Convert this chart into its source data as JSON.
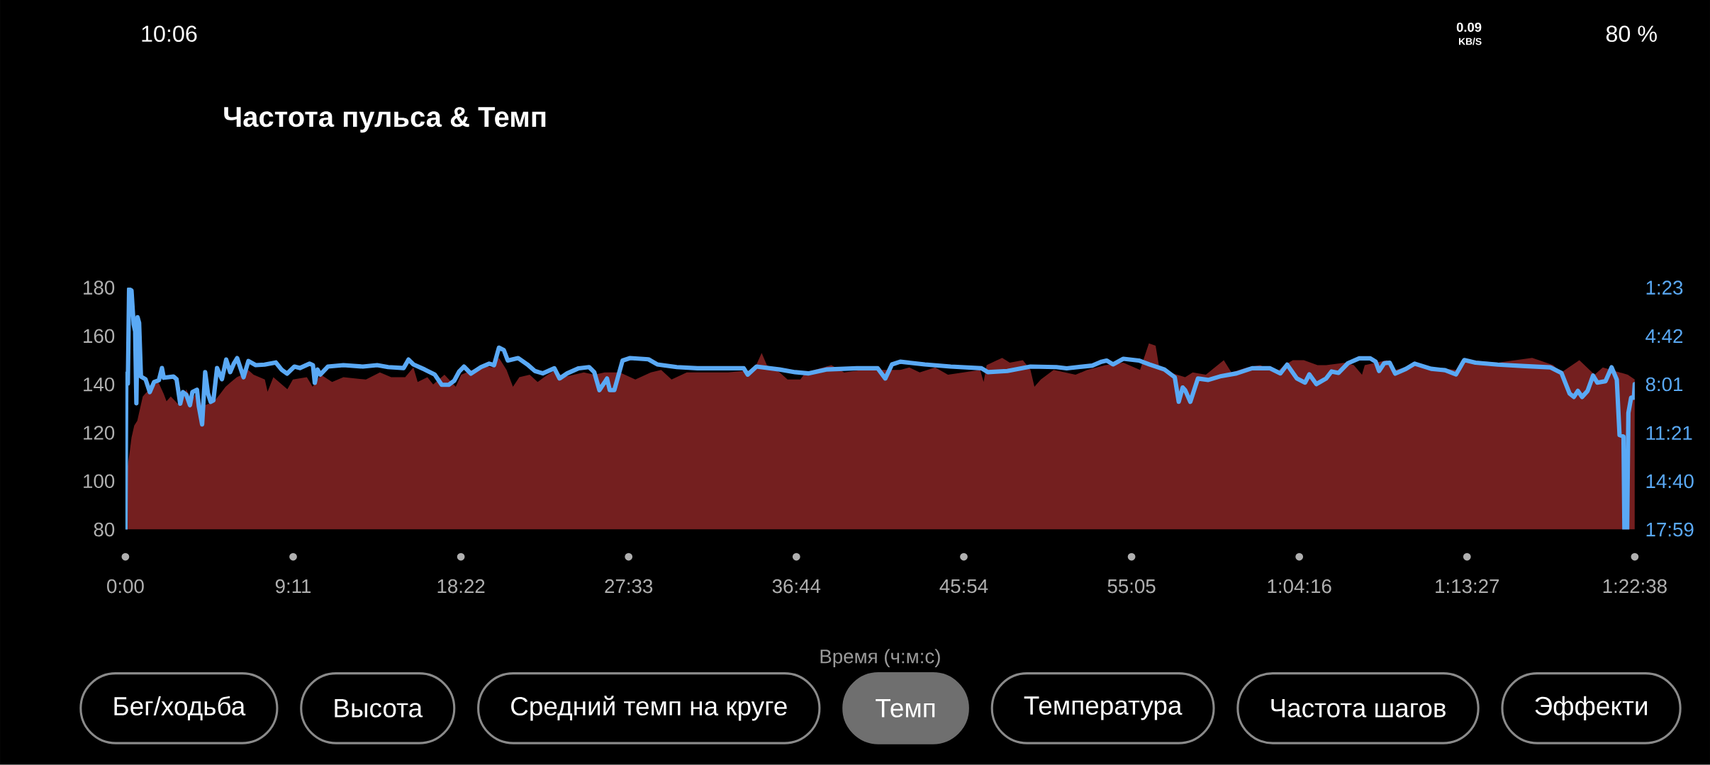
{
  "chart_data": {
    "type": "area",
    "title": "Частота пульса & Темп",
    "xlabel": "Время (ч:м:с)",
    "xlim": [
      0,
      4958
    ],
    "xticks": [
      {
        "value": 0,
        "label": "0:00"
      },
      {
        "value": 551,
        "label": "9:11"
      },
      {
        "value": 1102,
        "label": "18:22"
      },
      {
        "value": 1653,
        "label": "27:33"
      },
      {
        "value": 2204,
        "label": "36:44"
      },
      {
        "value": 2754,
        "label": "45:54"
      },
      {
        "value": 3305,
        "label": "55:05"
      },
      {
        "value": 3856,
        "label": "1:04:16"
      },
      {
        "value": 4407,
        "label": "1:13:27"
      },
      {
        "value": 4958,
        "label": "1:22:38"
      }
    ],
    "ylim": [
      80,
      180
    ],
    "yticks": [
      80,
      100,
      120,
      140,
      160,
      180
    ],
    "y2lim": [
      1079,
      83
    ],
    "y2ticks": [
      {
        "value": 83,
        "label": "1:23"
      },
      {
        "value": 282,
        "label": "4:42"
      },
      {
        "value": 481,
        "label": "8:01"
      },
      {
        "value": 681,
        "label": "11:21"
      },
      {
        "value": 880,
        "label": "14:40"
      },
      {
        "value": 1079,
        "label": "17:59"
      }
    ],
    "series": [
      {
        "color": "#741f1f",
        "x": [
          0,
          14,
          20,
          29,
          39,
          48,
          57,
          71,
          89,
          108,
          126,
          135,
          149,
          172,
          182,
          200,
          218,
          237,
          251,
          274,
          292,
          311,
          329,
          347,
          366,
          384,
          403,
          421,
          458,
          467,
          486,
          532,
          550,
          596,
          615,
          642,
          679,
          716,
          790,
          836,
          873,
          919,
          946,
          960,
          992,
          1011,
          1048,
          1085,
          1103,
          1140,
          1177,
          1204,
          1227,
          1252,
          1273,
          1294,
          1328,
          1354,
          1387,
          1413,
          1438,
          1506,
          1540,
          1574,
          1624,
          1675,
          1726,
          1760,
          1794,
          1844,
          1895,
          1980,
          2065,
          2090,
          2107,
          2149,
          2175,
          2217,
          2234,
          2319,
          2361,
          2420,
          2488,
          2545,
          2575,
          2609,
          2660,
          2702,
          2753,
          2808,
          2819,
          2829,
          2880,
          2905,
          2948,
          2973,
          2986,
          3007,
          3049,
          3121,
          3159,
          3219,
          3278,
          3333,
          3362,
          3384,
          3396,
          3430,
          3481,
          3506,
          3549,
          3608,
          3633,
          3684,
          3727,
          3780,
          3807,
          3835,
          3871,
          3916,
          3944,
          4007,
          4035,
          4062,
          4071,
          4144,
          4171,
          4235,
          4289,
          4371,
          4389,
          4417,
          4508,
          4621,
          4690,
          4717,
          4776,
          4826,
          4853,
          4908,
          4935,
          4958
        ],
        "values": [
          100,
          112,
          118,
          123,
          125,
          130,
          135,
          137,
          139,
          141,
          136,
          133,
          135,
          132,
          131,
          138,
          133,
          138,
          131,
          132,
          133,
          136,
          139,
          141,
          143,
          144,
          146,
          144,
          142,
          137,
          143,
          138,
          142,
          143,
          139,
          144,
          141,
          143,
          142,
          145,
          143,
          143,
          147,
          141,
          143,
          140,
          144,
          139,
          144,
          146,
          148,
          147,
          151,
          146,
          139,
          143,
          144,
          141,
          144,
          146,
          143,
          145,
          144,
          145,
          145,
          142,
          145,
          146,
          142,
          145,
          145,
          145,
          146,
          153,
          148,
          145,
          142,
          142,
          145,
          148,
          145,
          146,
          146,
          146,
          147,
          145,
          147,
          144,
          145,
          146,
          141,
          148,
          151,
          149,
          150,
          146,
          139,
          142,
          146,
          144,
          146,
          148,
          149,
          146,
          157,
          156,
          147,
          145,
          143,
          145,
          144,
          150,
          145,
          147,
          148,
          145,
          148,
          150,
          150,
          148,
          148,
          149,
          148,
          144,
          148,
          150,
          146,
          148,
          147,
          146,
          150,
          150,
          149,
          151,
          148,
          145,
          150,
          144,
          147,
          145,
          144,
          142
        ]
      },
      {
        "type": "line",
        "axis": "y2",
        "color": "#5aa9f5",
        "x": [
          0,
          3,
          8,
          12,
          20,
          27,
          32,
          36,
          40,
          45,
          51,
          66,
          80,
          94,
          110,
          120,
          126,
          158,
          168,
          180,
          189,
          200,
          212,
          220,
          235,
          241,
          252,
          262,
          271,
          280,
          289,
          301,
          317,
          331,
          344,
          356,
          367,
          388,
          404,
          428,
          457,
          494,
          514,
          531,
          555,
          573,
          605,
          616,
          622,
          631,
          640,
          665,
          716,
          780,
          827,
          863,
          914,
          930,
          946,
          983,
          1016,
          1039,
          1062,
          1080,
          1096,
          1112,
          1135,
          1168,
          1195,
          1211,
          1227,
          1243,
          1256,
          1290,
          1320,
          1345,
          1371,
          1409,
          1426,
          1451,
          1489,
          1523,
          1540,
          1557,
          1574,
          1582,
          1591,
          1606,
          1633,
          1658,
          1718,
          1747,
          1811,
          1879,
          1955,
          2031,
          2044,
          2073,
          2149,
          2200,
          2243,
          2302,
          2403,
          2471,
          2496,
          2518,
          2545,
          2626,
          2711,
          2812,
          2833,
          2897,
          2973,
          3058,
          3092,
          3176,
          3206,
          3223,
          3244,
          3278,
          3329,
          3363,
          3413,
          3447,
          3460,
          3473,
          3481,
          3498,
          3523,
          3557,
          3600,
          3650,
          3701,
          3760,
          3794,
          3816,
          3848,
          3875,
          3889,
          3912,
          3944,
          3962,
          3985,
          4016,
          4053,
          4089,
          4107,
          4118,
          4135,
          4153,
          4171,
          4207,
          4235,
          4289,
          4335,
          4371,
          4398,
          4435,
          4508,
          4598,
          4680,
          4717,
          4744,
          4758,
          4771,
          4785,
          4803,
          4821,
          4835,
          4862,
          4882,
          4899,
          4908,
          4921,
          4924,
          4933,
          4937,
          4946,
          4955,
          4958
        ],
        "values": [
          1079,
          437,
          478,
          89,
          95,
          234,
          263,
          559,
          205,
          228,
          449,
          460,
          513,
          472,
          464,
          414,
          454,
          449,
          460,
          561,
          513,
          524,
          567,
          513,
          503,
          571,
          646,
          431,
          518,
          553,
          547,
          414,
          460,
          379,
          431,
          396,
          373,
          452,
          385,
          402,
          400,
          391,
          422,
          437,
          408,
          414,
          396,
          402,
          475,
          420,
          441,
          408,
          402,
          408,
          402,
          410,
          414,
          379,
          399,
          420,
          441,
          483,
          483,
          466,
          429,
          408,
          437,
          410,
          396,
          402,
          330,
          340,
          383,
          373,
          399,
          426,
          436,
          415,
          457,
          436,
          415,
          410,
          431,
          505,
          473,
          457,
          505,
          505,
          383,
          373,
          378,
          399,
          410,
          415,
          415,
          415,
          441,
          408,
          420,
          431,
          436,
          420,
          415,
          415,
          457,
          399,
          388,
          399,
          408,
          415,
          431,
          426,
          408,
          410,
          415,
          404,
          388,
          383,
          399,
          376,
          383,
          399,
          420,
          452,
          553,
          494,
          505,
          553,
          457,
          463,
          447,
          436,
          415,
          415,
          436,
          400,
          457,
          474,
          440,
          480,
          457,
          428,
          434,
          394,
          374,
          374,
          388,
          426,
          394,
          392,
          437,
          417,
          396,
          417,
          423,
          440,
          381,
          392,
          400,
          406,
          411,
          434,
          519,
          533,
          508,
          533,
          508,
          445,
          474,
          468,
          411,
          462,
          690,
          696,
          1079,
          1079,
          599,
          536,
          536,
          480
        ]
      }
    ],
    "annotations": [
      "10:06",
      "0.09",
      "KB/S",
      "80 %",
      "Бег/ходьба",
      "Высота",
      "Средний темп на круге",
      "Темп",
      "Температура",
      "Частота шагов",
      "Эффекти"
    ]
  }
}
